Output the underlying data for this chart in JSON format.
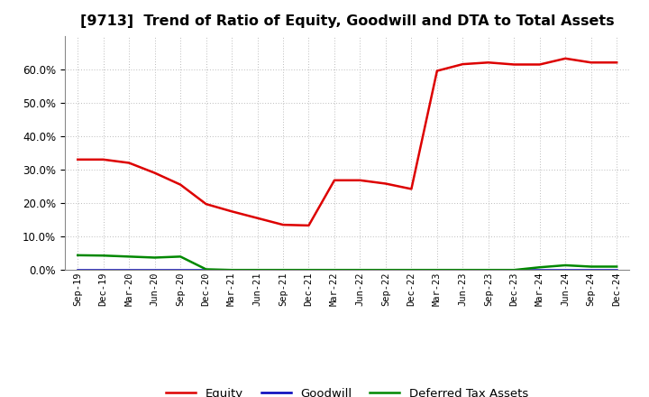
{
  "title": "[9713]  Trend of Ratio of Equity, Goodwill and DTA to Total Assets",
  "x_labels": [
    "Sep-19",
    "Dec-19",
    "Mar-20",
    "Jun-20",
    "Sep-20",
    "Dec-20",
    "Mar-21",
    "Jun-21",
    "Sep-21",
    "Dec-21",
    "Mar-22",
    "Jun-22",
    "Sep-22",
    "Dec-22",
    "Mar-23",
    "Jun-23",
    "Sep-23",
    "Dec-23",
    "Mar-24",
    "Jun-24",
    "Sep-24",
    "Dec-24"
  ],
  "equity": [
    0.33,
    0.33,
    0.32,
    0.29,
    0.255,
    0.197,
    0.175,
    0.155,
    0.135,
    0.133,
    0.268,
    0.268,
    0.258,
    0.242,
    0.595,
    0.615,
    0.62,
    0.614,
    0.614,
    0.632,
    0.62,
    0.62
  ],
  "goodwill": [
    0.0,
    0.0,
    0.0,
    0.0,
    0.0,
    0.0,
    0.0,
    0.0,
    0.0,
    0.0,
    0.0,
    0.0,
    0.0,
    0.0,
    0.0,
    0.0,
    0.0,
    0.0,
    0.0,
    0.0,
    0.0,
    0.0
  ],
  "dta": [
    0.044,
    0.043,
    0.04,
    0.037,
    0.04,
    0.002,
    0.0,
    0.0,
    0.0,
    0.0,
    0.0,
    0.0,
    0.0,
    0.0,
    0.0,
    0.0,
    0.0,
    0.0,
    0.008,
    0.014,
    0.01,
    0.01
  ],
  "equity_color": "#dd0000",
  "goodwill_color": "#0000bb",
  "dta_color": "#008800",
  "ylim": [
    0.0,
    0.7
  ],
  "yticks": [
    0.0,
    0.1,
    0.2,
    0.3,
    0.4,
    0.5,
    0.6
  ],
  "background_color": "#ffffff",
  "grid_color": "#bbbbbb",
  "title_fontsize": 11.5,
  "line_width": 1.8
}
